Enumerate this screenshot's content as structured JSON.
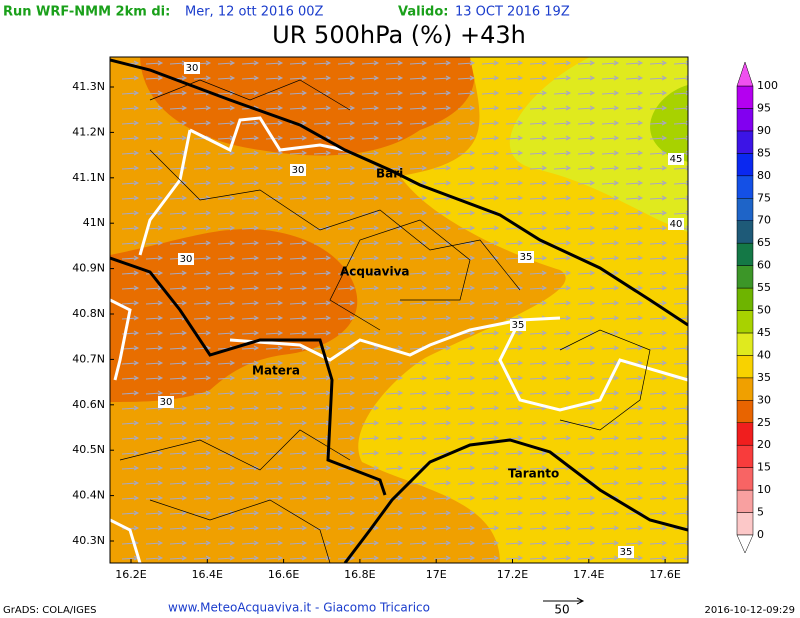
{
  "header": {
    "run": "Run WRF-NMM 2km di:",
    "run_date": "Mer, 12 ott 2016 00Z",
    "valid_label": "Valido:",
    "valid_date": "13 OCT 2016 19Z",
    "title": "UR 500hPa (%) +43h"
  },
  "map": {
    "lat_labels": [
      "41.3N",
      "41.2N",
      "41.1N",
      "41N",
      "40.9N",
      "40.8N",
      "40.7N",
      "40.6N",
      "40.5N",
      "40.4N",
      "40.3N"
    ],
    "lon_labels": [
      "16.2E",
      "16.4E",
      "16.6E",
      "16.8E",
      "17E",
      "17.2E",
      "17.4E",
      "17.6E"
    ],
    "cities": [
      "Bari",
      "Acquaviva",
      "Matera",
      "Taranto"
    ],
    "contour_labels": [
      30,
      30,
      30,
      30,
      35,
      35,
      35,
      40,
      45
    ]
  },
  "colorbar": {
    "levels": [
      0,
      5,
      10,
      15,
      20,
      25,
      30,
      35,
      40,
      45,
      50,
      55,
      60,
      65,
      70,
      75,
      80,
      85,
      90,
      95,
      100
    ],
    "colors": [
      "#fcc8c8",
      "#f8a0a0",
      "#f86464",
      "#f83c3c",
      "#f01e1e",
      "#e86400",
      "#f0a000",
      "#f8d200",
      "#e0ea1e",
      "#a8d200",
      "#6eb400",
      "#3c9628",
      "#147846",
      "#1e5a78",
      "#1e64c8",
      "#1450e6",
      "#0a28f0",
      "#3c14e6",
      "#8200f0",
      "#b400f0"
    ],
    "under_color": "#ffffff",
    "over_color": "#f050f0"
  },
  "footer": {
    "credit": "GrADS: COLA/IGES",
    "site": "www.MeteoAcquaviva.it - Giacomo Tricarico",
    "vector_scale": "50",
    "timestamp": "2016-10-12-09:29"
  }
}
